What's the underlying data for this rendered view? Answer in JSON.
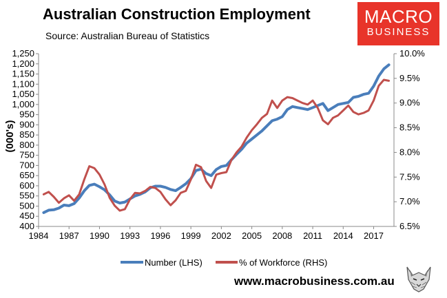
{
  "header": {
    "title": "Australian Construction Employment",
    "subtitle": "Source: Australian Bureau of Statistics"
  },
  "logo": {
    "line1": "MACRO",
    "line2": "BUSINESS",
    "bg_color": "#e8342a"
  },
  "footer": {
    "url": "www.macrobusiness.com.au",
    "icon": "wolf-icon"
  },
  "chart_data": {
    "type": "line",
    "title": "Australian Construction Employment",
    "ylabel": "(000's)",
    "y2label": "",
    "xlim": [
      1984,
      2019
    ],
    "ylim": [
      400,
      1250
    ],
    "y2lim": [
      6.5,
      10.0
    ],
    "xticks": [
      1984,
      1987,
      1990,
      1993,
      1996,
      1999,
      2002,
      2005,
      2008,
      2011,
      2014,
      2017
    ],
    "yticks": [
      "400",
      "450",
      "500",
      "550",
      "600",
      "650",
      "700",
      "750",
      "800",
      "850",
      "900",
      "950",
      "1,000",
      "1,050",
      "1,100",
      "1,150",
      "1,200",
      "1,250"
    ],
    "y2ticks": [
      "6.5%",
      "7.0%",
      "7.5%",
      "8.0%",
      "8.5%",
      "9.0%",
      "9.5%",
      "10.0%"
    ],
    "grid": false,
    "legend_position": "bottom",
    "series": [
      {
        "name": "Number (LHS)",
        "axis": "left",
        "color": "#4a7ebb",
        "x": [
          1984.5,
          1985,
          1985.5,
          1986,
          1986.5,
          1987,
          1987.5,
          1988,
          1988.5,
          1989,
          1989.5,
          1990,
          1990.5,
          1991,
          1991.5,
          1992,
          1992.5,
          1993,
          1993.5,
          1994,
          1994.5,
          1995,
          1995.5,
          1996,
          1996.5,
          1997,
          1997.5,
          1998,
          1998.5,
          1999,
          1999.5,
          2000,
          2000.5,
          2001,
          2001.5,
          2002,
          2002.5,
          2003,
          2003.5,
          2004,
          2004.5,
          2005,
          2005.5,
          2006,
          2006.5,
          2007,
          2007.5,
          2008,
          2008.5,
          2009,
          2009.5,
          2010,
          2010.5,
          2011,
          2011.5,
          2012,
          2012.5,
          2013,
          2013.5,
          2014,
          2014.5,
          2015,
          2015.5,
          2016,
          2016.5,
          2017,
          2017.5,
          2018,
          2018.5
        ],
        "values": [
          468,
          480,
          482,
          490,
          505,
          502,
          512,
          540,
          575,
          602,
          608,
          595,
          580,
          555,
          525,
          515,
          520,
          535,
          550,
          558,
          570,
          590,
          598,
          598,
          592,
          582,
          576,
          592,
          610,
          635,
          675,
          682,
          660,
          650,
          680,
          695,
          700,
          728,
          755,
          780,
          810,
          830,
          850,
          870,
          895,
          920,
          928,
          940,
          975,
          990,
          985,
          980,
          975,
          985,
          995,
          1005,
          970,
          985,
          1000,
          1005,
          1010,
          1035,
          1040,
          1050,
          1055,
          1090,
          1140,
          1175,
          1195
        ]
      },
      {
        "name": "% of Workforce (RHS)",
        "axis": "right",
        "color": "#c0504d",
        "x": [
          1984.5,
          1985,
          1985.5,
          1986,
          1986.5,
          1987,
          1987.5,
          1988,
          1988.5,
          1989,
          1989.5,
          1990,
          1990.5,
          1991,
          1991.5,
          1992,
          1992.5,
          1993,
          1993.5,
          1994,
          1994.5,
          1995,
          1995.5,
          1996,
          1996.5,
          1997,
          1997.5,
          1998,
          1998.5,
          1999,
          1999.5,
          2000,
          2000.5,
          2001,
          2001.5,
          2002,
          2002.5,
          2003,
          2003.5,
          2004,
          2004.5,
          2005,
          2005.5,
          2006,
          2006.5,
          2007,
          2007.5,
          2008,
          2008.5,
          2009,
          2009.5,
          2010,
          2010.5,
          2011,
          2011.5,
          2012,
          2012.5,
          2013,
          2013.5,
          2014,
          2014.5,
          2015,
          2015.5,
          2016,
          2016.5,
          2017,
          2017.5,
          2018,
          2018.5
        ],
        "values": [
          7.15,
          7.2,
          7.1,
          6.98,
          7.07,
          7.13,
          7.02,
          7.15,
          7.45,
          7.72,
          7.68,
          7.55,
          7.35,
          7.08,
          6.92,
          6.82,
          6.85,
          7.05,
          7.18,
          7.17,
          7.22,
          7.3,
          7.28,
          7.2,
          7.05,
          6.93,
          7.03,
          7.18,
          7.22,
          7.45,
          7.75,
          7.7,
          7.42,
          7.28,
          7.55,
          7.58,
          7.6,
          7.85,
          8.0,
          8.12,
          8.3,
          8.45,
          8.57,
          8.7,
          8.78,
          9.05,
          8.9,
          9.05,
          9.12,
          9.1,
          9.05,
          9.0,
          8.97,
          9.05,
          8.9,
          8.65,
          8.57,
          8.7,
          8.75,
          8.85,
          8.95,
          8.82,
          8.77,
          8.8,
          8.85,
          9.05,
          9.35,
          9.47,
          9.45
        ]
      }
    ]
  }
}
